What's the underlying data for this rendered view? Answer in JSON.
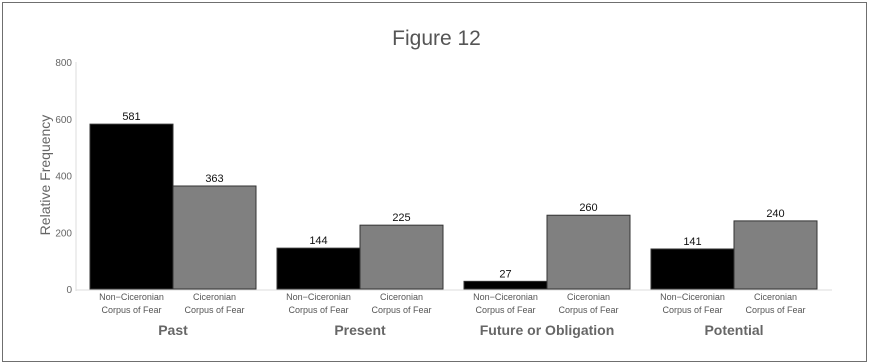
{
  "chart_data": {
    "type": "bar",
    "title": "Figure 12",
    "ylabel": "Relative Frequency",
    "ylim": [
      0,
      800
    ],
    "yticks": [
      0,
      200,
      400,
      600,
      800
    ],
    "groups": [
      "Past",
      "Present",
      "Future or Obligation",
      "Potential"
    ],
    "series": [
      {
        "category_label": [
          "Non−Ciceronian",
          "Corpus of Fear"
        ],
        "color": "#000000",
        "values": [
          581,
          144,
          27,
          141
        ]
      },
      {
        "category_label": [
          "Ciceronian",
          "Corpus of Fear"
        ],
        "color": "#808080",
        "values": [
          363,
          225,
          260,
          240
        ]
      }
    ],
    "grid": false
  }
}
